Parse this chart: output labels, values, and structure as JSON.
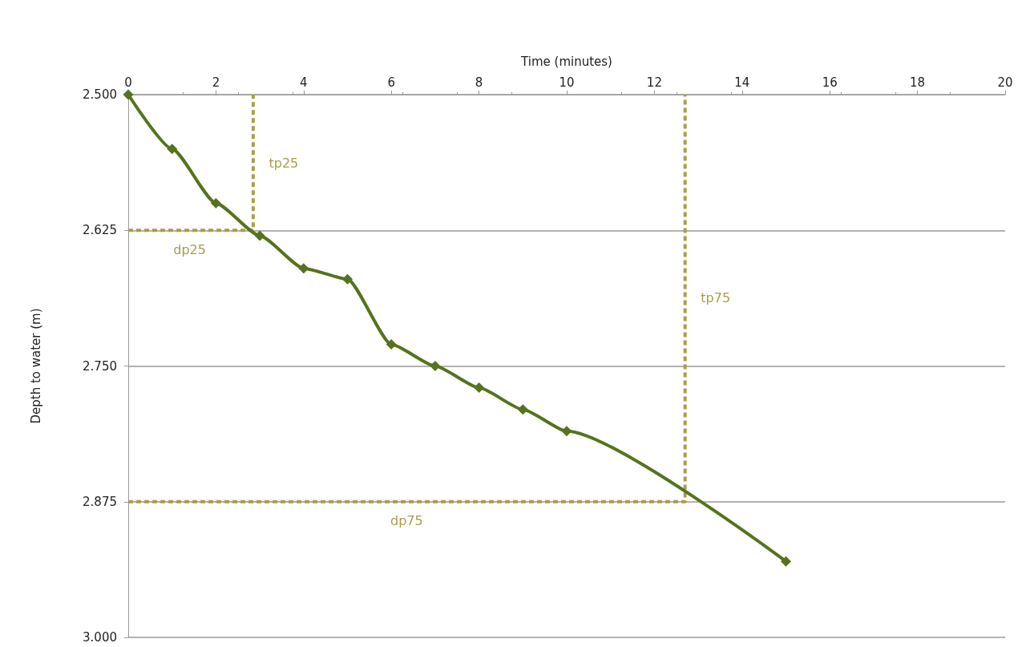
{
  "chart_data": {
    "type": "line",
    "xlabel": "Time (minutes)",
    "ylabel": "Depth to water (m)",
    "xlim": [
      0,
      20
    ],
    "xticks": [
      0,
      2,
      4,
      6,
      8,
      10,
      12,
      14,
      16,
      18,
      20
    ],
    "ylim": [
      3.0,
      2.5
    ],
    "yticks": [
      {
        "value": 2.5,
        "label": "2.500"
      },
      {
        "value": 2.625,
        "label": "2.625"
      },
      {
        "value": 2.75,
        "label": "2.750"
      },
      {
        "value": 2.875,
        "label": "2.875"
      },
      {
        "value": 3.0,
        "label": "3.000"
      }
    ],
    "grid": "y",
    "marker": "diamond",
    "line_style": "solid",
    "series": [
      {
        "color": "#55731e",
        "x": [
          0,
          1,
          2,
          3,
          4,
          5,
          6,
          7,
          8,
          9,
          10,
          15
        ],
        "values": [
          2.5,
          2.55,
          2.6,
          2.63,
          2.66,
          2.67,
          2.73,
          2.75,
          2.77,
          2.79,
          2.81,
          2.93
        ]
      },
      {
        "type": "line",
        "color": "#a89e4a",
        "line_style": "dashed",
        "marker": "none",
        "x": [
          0,
          2.85,
          2.85
        ],
        "values": [
          2.625,
          2.625,
          2.5
        ]
      },
      {
        "type": "line",
        "color": "#a89e4a",
        "line_style": "dashed",
        "marker": "none",
        "x": [
          0,
          12.7,
          12.7
        ],
        "values": [
          2.875,
          2.875,
          2.5
        ]
      }
    ],
    "annotations": [
      {
        "text": "tp25",
        "x": 2.85,
        "y": 2.563
      },
      {
        "text": "dp25",
        "x": 1.4,
        "y": 2.625
      },
      {
        "text": "tp75",
        "x": 12.7,
        "y": 2.687
      },
      {
        "text": "dp75",
        "x": 6.35,
        "y": 2.875
      }
    ]
  }
}
